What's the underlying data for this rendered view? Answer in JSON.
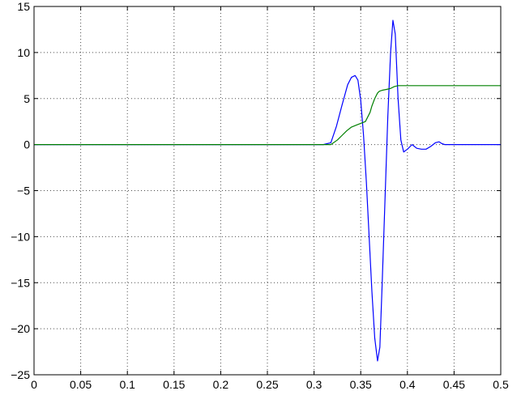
{
  "chart_data": {
    "type": "line",
    "title": "",
    "xlabel": "",
    "ylabel": "",
    "xlim": [
      0,
      0.5
    ],
    "ylim": [
      -25,
      15
    ],
    "grid": true,
    "x_ticks": [
      0,
      0.05,
      0.1,
      0.15,
      0.2,
      0.25,
      0.3,
      0.35,
      0.4,
      0.45,
      0.5
    ],
    "x_tick_labels": [
      "0",
      "0.05",
      "0.1",
      "0.15",
      "0.2",
      "0.25",
      "0.3",
      "0.35",
      "0.4",
      "0.45",
      "0.5"
    ],
    "y_ticks": [
      -25,
      -20,
      -15,
      -10,
      -5,
      0,
      5,
      10,
      15
    ],
    "y_tick_labels": [
      "−25",
      "−20",
      "−15",
      "−10",
      "−5",
      "0",
      "5",
      "10",
      "15"
    ],
    "series": [
      {
        "color": "#0000ff",
        "x": [
          0,
          0.31,
          0.318,
          0.324,
          0.33,
          0.336,
          0.34,
          0.344,
          0.347,
          0.35,
          0.353,
          0.356,
          0.359,
          0.362,
          0.365,
          0.368,
          0.3705,
          0.373,
          0.376,
          0.379,
          0.382,
          0.3845,
          0.387,
          0.39,
          0.393,
          0.396,
          0.4,
          0.405,
          0.41,
          0.415,
          0.42,
          0.425,
          0.43,
          0.434,
          0.437,
          0.44,
          0.445,
          0.45,
          0.5
        ],
        "y": [
          0,
          0,
          0.2,
          2,
          4.3,
          6.5,
          7.3,
          7.5,
          7,
          4.8,
          1,
          -4,
          -10,
          -16,
          -21,
          -23.5,
          -22,
          -15,
          -6,
          3,
          10,
          13.5,
          12,
          5,
          0.5,
          -0.8,
          -0.5,
          0,
          -0.4,
          -0.5,
          -0.5,
          -0.2,
          0.2,
          0.3,
          0.1,
          0,
          0,
          0,
          0
        ]
      },
      {
        "color": "#008000",
        "x": [
          0,
          0.318,
          0.325,
          0.33,
          0.335,
          0.34,
          0.345,
          0.35,
          0.355,
          0.36,
          0.362,
          0.365,
          0.368,
          0.37,
          0.373,
          0.378,
          0.382,
          0.386,
          0.39,
          0.395,
          0.5
        ],
        "y": [
          0,
          0,
          0.5,
          1,
          1.5,
          1.9,
          2.1,
          2.3,
          2.5,
          3.5,
          4.2,
          5,
          5.6,
          5.8,
          5.9,
          6,
          6.1,
          6.3,
          6.4,
          6.4,
          6.4
        ]
      }
    ]
  }
}
